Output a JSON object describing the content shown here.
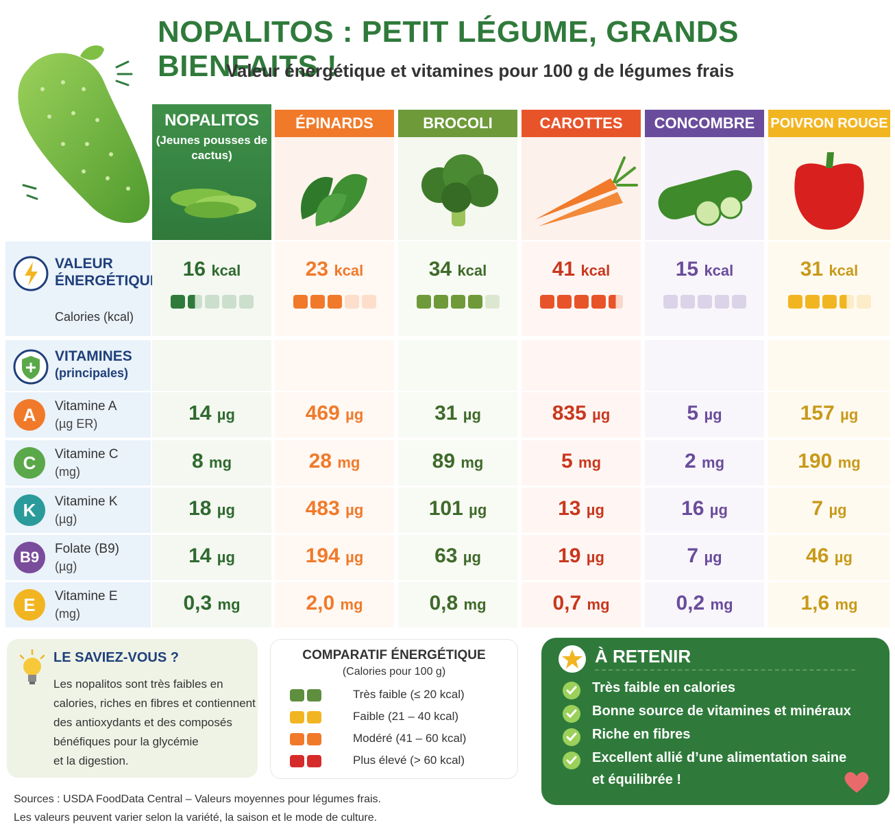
{
  "header": {
    "title": "NOPALITOS : PETIT LÉGUME, GRANDS BIENFAITS !",
    "subtitle": "Valeur énergétique et vitamines pour 100 g de légumes frais"
  },
  "columns": [
    {
      "name": "NOPALITOS",
      "sub": "(Jeunes pousses de cactus)",
      "color": "#2f7a3b"
    },
    {
      "name": "ÉPINARDS",
      "color": "#f07a2a"
    },
    {
      "name": "BROCOLI",
      "color": "#6e9a3a"
    },
    {
      "name": "CAROTTES",
      "color": "#e8542a"
    },
    {
      "name": "CONCOMBRE",
      "color": "#6a4c9c"
    },
    {
      "name": "POIVRON ROUGE",
      "color": "#f2b522"
    }
  ],
  "energy": {
    "label1": "VALEUR",
    "label2": "ÉNERGÉTIQUE",
    "sub": "Calories (kcal)",
    "unit": "kcal",
    "values": [
      "16",
      "23",
      "34",
      "41",
      "15",
      "31"
    ],
    "bars_filled": [
      1.5,
      3,
      4,
      4.5,
      0,
      3.5
    ]
  },
  "vitamins": {
    "label1": "VITAMINES",
    "label2": "(principales)",
    "rows": [
      {
        "letter": "A",
        "name": "Vitamine A",
        "unit_label": "(µg ER)",
        "color": "#f07a2a",
        "unit": "µg",
        "values": [
          "14",
          "469",
          "31",
          "835",
          "5",
          "157"
        ]
      },
      {
        "letter": "C",
        "name": "Vitamine C",
        "unit_label": "(mg)",
        "color": "#5aa84a",
        "unit": "mg",
        "values": [
          "8",
          "28",
          "89",
          "5",
          "2",
          "190"
        ]
      },
      {
        "letter": "K",
        "name": "Vitamine K",
        "unit_label": "(µg)",
        "color": "#2a9a9a",
        "unit": "µg",
        "values": [
          "18",
          "483",
          "101",
          "13",
          "16",
          "7"
        ]
      },
      {
        "letter": "B9",
        "name": "Folate (B9)",
        "unit_label": "(µg)",
        "color": "#7a4c9c",
        "unit": "µg",
        "values": [
          "14",
          "194",
          "63",
          "19",
          "7",
          "46"
        ]
      },
      {
        "letter": "E",
        "name": "Vitamine E",
        "unit_label": "(mg)",
        "color": "#f2b522",
        "unit": "mg",
        "values": [
          "0,3",
          "2,0",
          "0,8",
          "0,7",
          "0,2",
          "1,6"
        ]
      }
    ]
  },
  "value_colors": [
    "#2f6a2f",
    "#f07a2a",
    "#3f6a2a",
    "#c8381e",
    "#6a4c9c",
    "#c89a1a"
  ],
  "saviez": {
    "title": "LE SAVIEZ-VOUS ?",
    "lines": [
      "Les nopalitos sont très faibles en",
      "calories, riches en fibres et contiennent",
      "des antioxydants et des composés",
      "bénéfiques pour la glycémie",
      "et la digestion."
    ]
  },
  "comparatif": {
    "title": "COMPARATIF ÉNERGÉTIQUE",
    "sub": "(Calories pour 100 g)",
    "items": [
      {
        "label": "Très faible (≤ 20 kcal)",
        "color": "#5e8f3e"
      },
      {
        "label": "Faible (21 – 40 kcal)",
        "color": "#f2b522"
      },
      {
        "label": "Modéré (41 – 60 kcal)",
        "color": "#f07a2a"
      },
      {
        "label": "Plus élevé (> 60 kcal)",
        "color": "#d62b2b"
      }
    ]
  },
  "retenir": {
    "title": "À RETENIR",
    "items": [
      "Très faible en calories",
      "Bonne source de vitamines et minéraux",
      "Riche en fibres",
      "Excellent allié d’une alimentation saine",
      "et équilibrée !"
    ]
  },
  "sources": {
    "line1": "Sources : USDA FoodData Central – Valeurs moyennes pour légumes frais.",
    "line2": "Les valeurs peuvent varier selon la variété, la saison et le mode de culture."
  }
}
